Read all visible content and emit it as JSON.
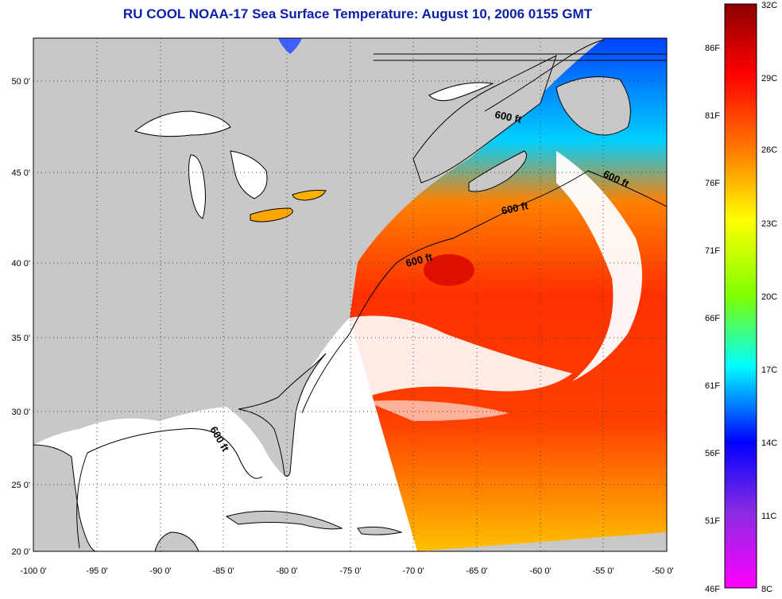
{
  "title": "RU COOL  NOAA-17  Sea Surface Temperature:  August 10, 2006 0155 GMT",
  "map": {
    "lon_range": [
      -100,
      -50
    ],
    "lat_range": [
      20,
      52
    ],
    "x_ticks": [
      "-100 0'",
      "-95 0'",
      "-90 0'",
      "-85 0'",
      "-80 0'",
      "-75 0'",
      "-70 0'",
      "-65 0'",
      "-60 0'",
      "-55 0'",
      "-50 0'"
    ],
    "y_ticks": [
      "50 0'",
      "45 0'",
      "40 0'",
      "35 0'",
      "30 0'",
      "25 0'",
      "20 0'"
    ],
    "contour_label": "600 ft",
    "contour_label_count": 5,
    "land_color": "#c8c8c8",
    "ocean_no_data_color": "#ffffff"
  },
  "colorbar": {
    "celsius": [
      "32C",
      "29C",
      "26C",
      "23C",
      "20C",
      "17C",
      "14C",
      "11C",
      "8C"
    ],
    "fahrenheit": [
      "86F",
      "81F",
      "76F",
      "71F",
      "66F",
      "61F",
      "56F",
      "51F",
      "46F"
    ],
    "range_c": [
      8,
      32
    ],
    "stops": [
      "#8b0000",
      "#ff0000",
      "#ff7a00",
      "#ffff00",
      "#7fff00",
      "#00ffff",
      "#0000ff",
      "#8a2be2",
      "#ff00ff"
    ]
  }
}
